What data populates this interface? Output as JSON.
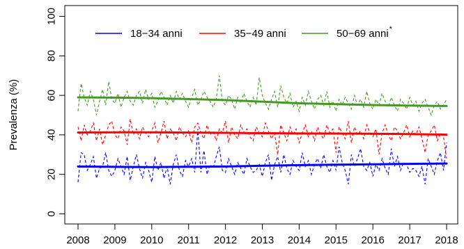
{
  "chart_data": {
    "type": "line",
    "title": "",
    "xlabel": "",
    "ylabel": "Prevalenza (%)",
    "xlim": [
      2008,
      2018
    ],
    "ylim": [
      0,
      100
    ],
    "x_ticks": [
      "2008",
      "2009",
      "2010",
      "2011",
      "2012",
      "2013",
      "2014",
      "2015",
      "2016",
      "2017",
      "2018"
    ],
    "y_ticks": [
      "0",
      "20",
      "40",
      "60",
      "80",
      "100"
    ],
    "grid": false,
    "legend_position": "top",
    "series": [
      {
        "name": "18−34 anni",
        "legend_sup": "",
        "color": "#0000FF",
        "trend": {
          "x": [
            2008,
            2010,
            2012,
            2014,
            2016,
            2018
          ],
          "y": [
            24,
            23.7,
            24,
            24.7,
            25.1,
            25.5
          ]
        },
        "monthly": [
          16,
          31,
          30,
          22,
          25,
          29,
          18,
          23,
          24,
          31,
          22,
          19,
          22,
          28,
          24,
          20,
          29,
          17,
          24,
          30,
          23,
          18,
          26,
          22,
          16,
          29,
          22,
          26,
          18,
          24,
          15,
          25,
          30,
          22,
          19,
          27,
          24,
          28,
          21,
          43,
          21,
          32,
          20,
          25,
          23,
          29,
          34,
          22,
          21,
          28,
          24,
          20,
          26,
          23,
          20,
          28,
          24,
          21,
          22,
          25,
          19,
          26,
          30,
          17,
          25,
          29,
          21,
          30,
          23,
          20,
          27,
          24,
          22,
          31,
          24,
          27,
          20,
          25,
          28,
          23,
          30,
          24,
          21,
          27,
          22,
          34,
          26,
          22,
          15,
          30,
          24,
          28,
          33,
          24,
          22,
          26,
          19,
          25,
          22,
          28,
          23,
          20,
          33,
          24,
          29,
          22,
          26,
          25,
          21,
          23,
          22,
          19,
          24,
          15,
          28,
          24,
          20,
          27,
          31,
          22,
          36
        ]
      },
      {
        "name": "35−49 anni",
        "legend_sup": "",
        "color": "#FF0000",
        "trend": {
          "x": [
            2008,
            2010,
            2012,
            2014,
            2016,
            2018
          ],
          "y": [
            41.2,
            41.3,
            41,
            40.7,
            40.6,
            40.1
          ]
        },
        "monthly": [
          44,
          37,
          45,
          40,
          42,
          46,
          37,
          43,
          35,
          40,
          45,
          47,
          40,
          38,
          44,
          42,
          35,
          48,
          40,
          43,
          38,
          44,
          41,
          39,
          42,
          46,
          36,
          41,
          47,
          38,
          43,
          41,
          37,
          44,
          41,
          39,
          42,
          36,
          44,
          46,
          41,
          38,
          45,
          40,
          42,
          37,
          43,
          41,
          47,
          36,
          44,
          40,
          38,
          45,
          41,
          43,
          39,
          37,
          44,
          41,
          39,
          46,
          42,
          38,
          41,
          30,
          45,
          41,
          37,
          44,
          40,
          43,
          36,
          41,
          45,
          39,
          42,
          37,
          44,
          40,
          38,
          45,
          41,
          43,
          31,
          44,
          41,
          38,
          47,
          36,
          44,
          40,
          42,
          38,
          45,
          41,
          39,
          43,
          30,
          41,
          45,
          40,
          37,
          44,
          42,
          38,
          41,
          45,
          39,
          42,
          40,
          44,
          38,
          31,
          40,
          42,
          45,
          37,
          41,
          39,
          28
        ]
      },
      {
        "name": "50−69 anni",
        "legend_sup": "*",
        "color": "#449922",
        "trend": {
          "x": [
            2008,
            2010,
            2012,
            2014,
            2016,
            2018
          ],
          "y": [
            59,
            58.6,
            57.6,
            56,
            55.1,
            54.6
          ]
        },
        "monthly": [
          52,
          66,
          59,
          55,
          62,
          58,
          50,
          57,
          63,
          55,
          67,
          58,
          56,
          61,
          54,
          59,
          62,
          57,
          55,
          60,
          62,
          56,
          63,
          58,
          61,
          54,
          57,
          62,
          59,
          55,
          60,
          56,
          62,
          58,
          61,
          57,
          54,
          59,
          63,
          55,
          58,
          62,
          59,
          57,
          54,
          58,
          70,
          57,
          55,
          60,
          58,
          53,
          59,
          56,
          61,
          57,
          54,
          59,
          55,
          69,
          60,
          56,
          53,
          58,
          62,
          54,
          65,
          59,
          56,
          61,
          54,
          57,
          52,
          59,
          55,
          62,
          57,
          53,
          58,
          60,
          55,
          62,
          54,
          57,
          52,
          58,
          55,
          59,
          56,
          53,
          60,
          55,
          58,
          54,
          62,
          56,
          53,
          58,
          55,
          61,
          57,
          54,
          59,
          55,
          52,
          58,
          56,
          53,
          59,
          55,
          57,
          52,
          56,
          58,
          54,
          50,
          55,
          57,
          53,
          55,
          58
        ]
      }
    ]
  }
}
